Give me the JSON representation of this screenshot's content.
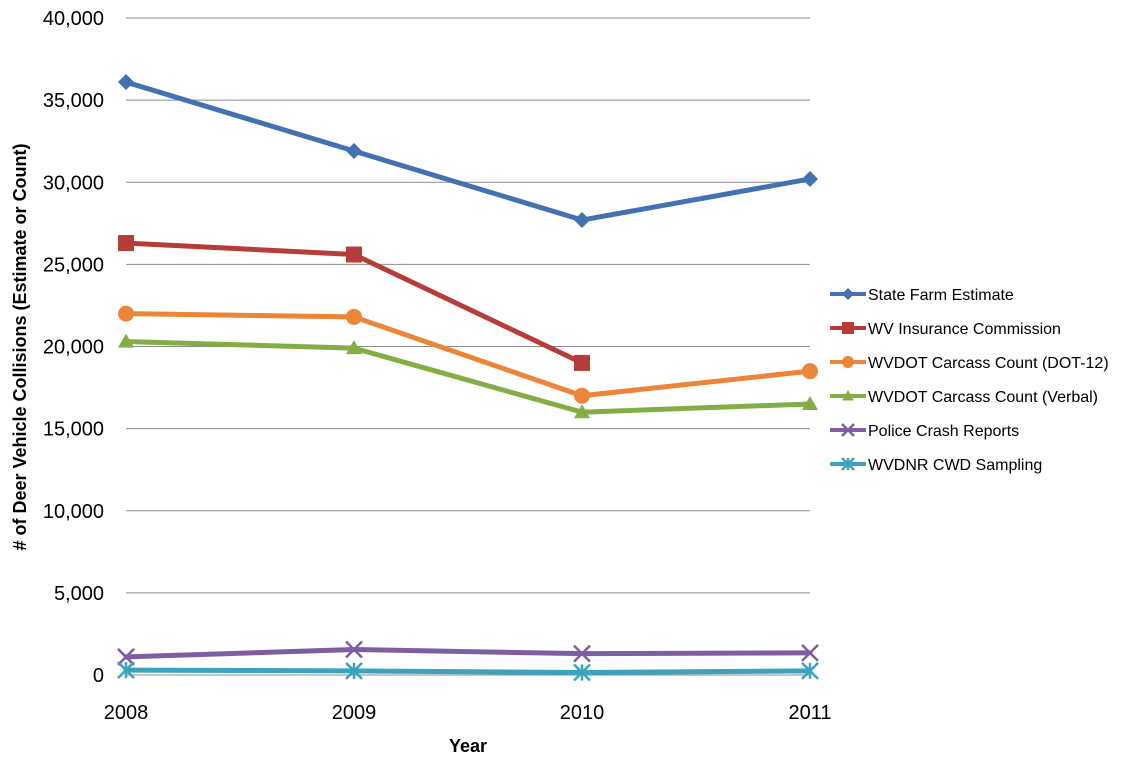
{
  "chart_data": {
    "type": "line",
    "title": "",
    "xlabel": "Year",
    "ylabel": "# of Deer Vehicle Collisions (Estimate or Count)",
    "categories": [
      "2008",
      "2009",
      "2010",
      "2011"
    ],
    "ylim": [
      0,
      40000
    ],
    "yticks": [
      0,
      5000,
      10000,
      15000,
      20000,
      25000,
      30000,
      35000,
      40000
    ],
    "ytick_labels": [
      "0",
      "5,000",
      "10,000",
      "15,000",
      "20,000",
      "25,000",
      "30,000",
      "35,000",
      "40,000"
    ],
    "grid": true,
    "legend_position": "right",
    "series": [
      {
        "name": "State Farm Estimate",
        "color": "#4372b2",
        "marker": "diamond",
        "values": [
          36100,
          31900,
          27700,
          30200
        ]
      },
      {
        "name": "WV Insurance Commission",
        "color": "#b63c39",
        "marker": "square",
        "values": [
          26300,
          25600,
          19000,
          null
        ]
      },
      {
        "name": "WVDOT Carcass Count (DOT-12)",
        "color": "#ec8538",
        "marker": "circle",
        "values": [
          22000,
          21800,
          17000,
          18500
        ]
      },
      {
        "name": "WVDOT Carcass Count (Verbal)",
        "color": "#85ad45",
        "marker": "triangle",
        "values": [
          20300,
          19900,
          16000,
          16500
        ]
      },
      {
        "name": "Police Crash Reports",
        "color": "#7e5ea2",
        "marker": "x",
        "values": [
          1100,
          1550,
          1300,
          1350
        ]
      },
      {
        "name": "WVDNR CWD Sampling",
        "color": "#3aa3bd",
        "marker": "star",
        "values": [
          300,
          250,
          150,
          250
        ]
      }
    ]
  }
}
